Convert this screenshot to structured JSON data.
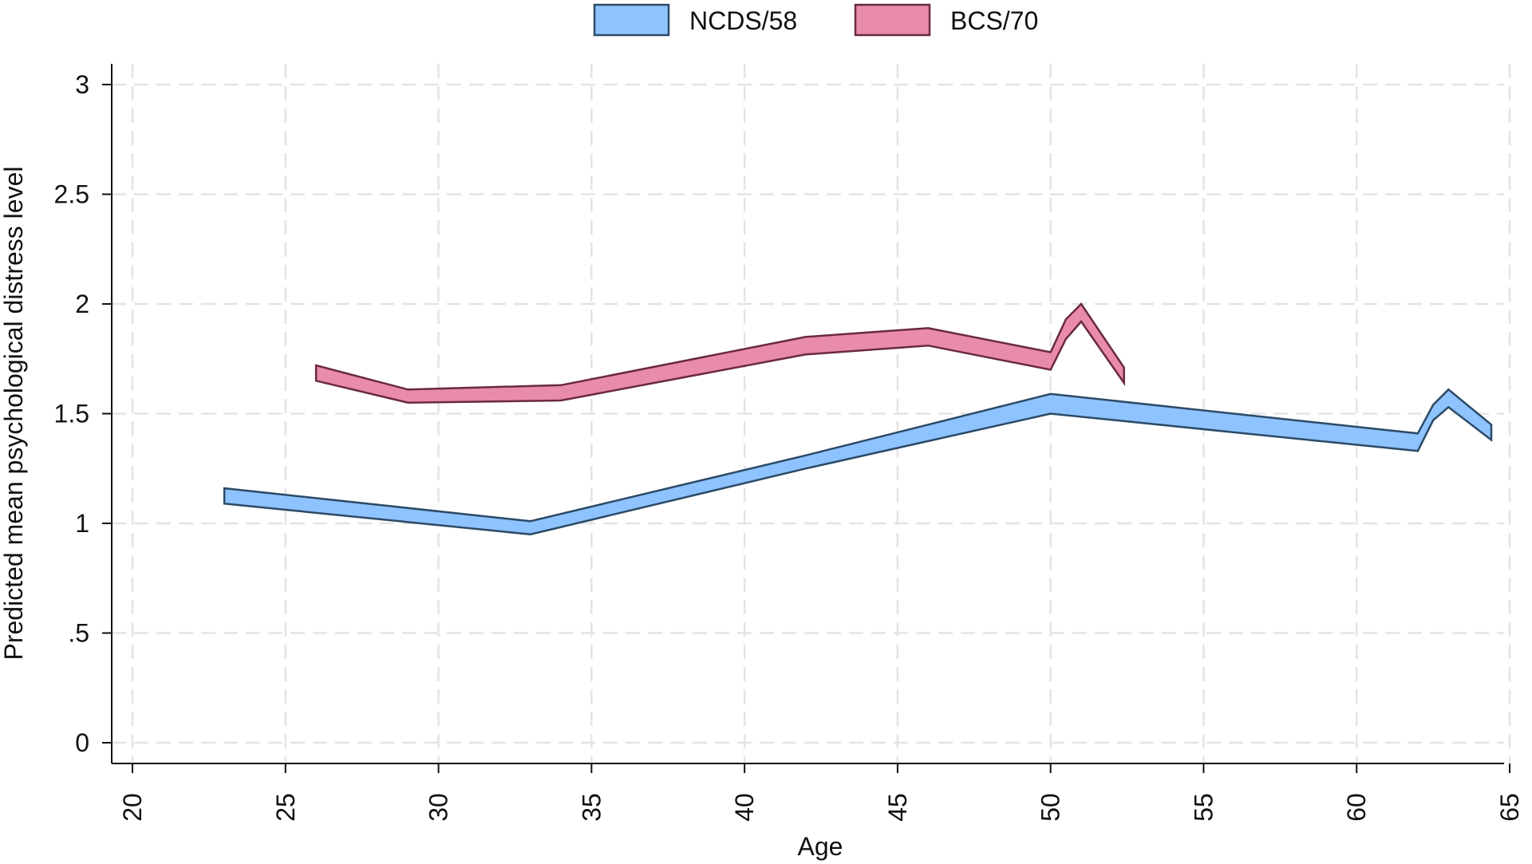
{
  "chart_data": {
    "type": "area",
    "title": "",
    "xlabel": "Age",
    "ylabel": "Predicted mean psychological distress level",
    "xlim": [
      20,
      65
    ],
    "ylim": [
      0,
      3
    ],
    "x_ticks": [
      20,
      25,
      30,
      35,
      40,
      45,
      50,
      55,
      60,
      65
    ],
    "x_tick_labels": [
      "20",
      "25",
      "30",
      "35",
      "40",
      "45",
      "50",
      "55",
      "60",
      "65"
    ],
    "y_ticks": [
      0,
      0.5,
      1,
      1.5,
      2,
      2.5,
      3
    ],
    "y_tick_labels": [
      "0",
      ".5",
      "1",
      "1.5",
      "2",
      "2.5",
      "3"
    ],
    "grid": true,
    "legend_position": "top-center",
    "series": [
      {
        "name": "NCDS/58",
        "color": "#8fc3ff",
        "edge_color": "#2b4a66",
        "x": [
          23,
          33,
          42,
          50,
          62,
          62.5,
          63,
          64.4
        ],
        "lower": [
          1.09,
          0.95,
          1.25,
          1.5,
          1.33,
          1.47,
          1.53,
          1.38
        ],
        "upper": [
          1.16,
          1.01,
          1.31,
          1.59,
          1.41,
          1.54,
          1.61,
          1.45
        ]
      },
      {
        "name": "BCS/70",
        "color": "#e98bab",
        "edge_color": "#6a2a3e",
        "x": [
          26,
          29,
          34,
          42,
          46,
          50,
          50.5,
          51,
          52.4
        ],
        "lower": [
          1.65,
          1.55,
          1.56,
          1.77,
          1.81,
          1.7,
          1.84,
          1.92,
          1.64
        ],
        "upper": [
          1.72,
          1.61,
          1.63,
          1.85,
          1.89,
          1.78,
          1.93,
          2.0,
          1.71
        ]
      }
    ]
  }
}
